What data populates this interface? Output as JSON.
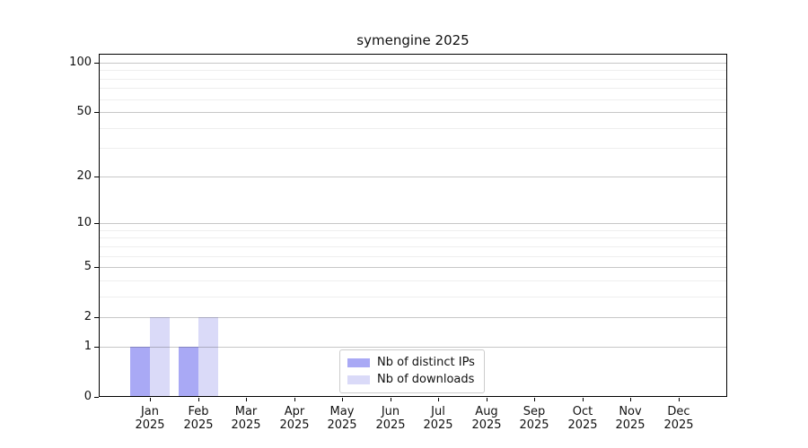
{
  "chart_data": {
    "type": "bar",
    "title": "symengine 2025",
    "categories": [
      "Jan 2025",
      "Feb 2025",
      "Mar 2025",
      "Apr 2025",
      "May 2025",
      "Jun 2025",
      "Jul 2025",
      "Aug 2025",
      "Sep 2025",
      "Oct 2025",
      "Nov 2025",
      "Dec 2025"
    ],
    "series": [
      {
        "name": "Nb of distinct IPs",
        "color": "#a9a9f5",
        "values": [
          1,
          1,
          0,
          0,
          0,
          0,
          0,
          0,
          0,
          0,
          0,
          0
        ]
      },
      {
        "name": "Nb of downloads",
        "color": "#dadaf8",
        "values": [
          2,
          2,
          0,
          0,
          0,
          0,
          0,
          0,
          0,
          0,
          0,
          0
        ]
      }
    ],
    "y_axis": {
      "scale": "log1p",
      "major_ticks": [
        0,
        1,
        2,
        5,
        10,
        20,
        50,
        100
      ],
      "minor_gridlines": [
        3,
        4,
        6,
        7,
        8,
        9,
        30,
        40,
        60,
        70,
        80,
        90
      ],
      "max_tick": 100
    },
    "grid": "horizontal-only",
    "legend": {
      "position": "bottom-center"
    }
  }
}
